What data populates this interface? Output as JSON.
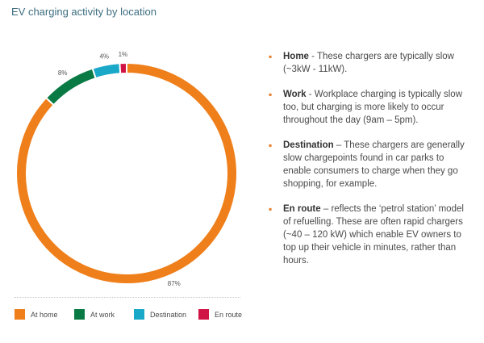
{
  "title": "EV charging activity by location",
  "chart_data": {
    "type": "pie",
    "categories": [
      "At home",
      "At work",
      "Destination",
      "En route"
    ],
    "values": [
      87,
      8,
      4,
      1
    ],
    "value_labels": [
      "87%",
      "8%",
      "4%",
      "1%"
    ],
    "colors": [
      "#ef7f1a",
      "#0a7a45",
      "#19a8c8",
      "#d11446"
    ],
    "legend": "bottom",
    "donut": true
  },
  "notes": [
    {
      "term": "Home",
      "sep": " - ",
      "text": "These chargers are typically slow (~3kW - 11kW)."
    },
    {
      "term": "Work",
      "sep": " - ",
      "text": "Workplace charging is typically slow too, but charging is more likely to occur throughout the day (9am – 5pm)."
    },
    {
      "term": "Destination",
      "sep": " – ",
      "text": "These chargers are generally slow chargepoints found in car parks to enable consumers to charge when they go shopping, for example."
    },
    {
      "term": "En route",
      "sep": " – ",
      "text": "reflects the ‘petrol station’ model of refuelling. These are often rapid chargers (~40 – 120 kW) which enable EV owners to top up their vehicle in minutes, rather than hours."
    }
  ],
  "bullet_glyph": "▪"
}
